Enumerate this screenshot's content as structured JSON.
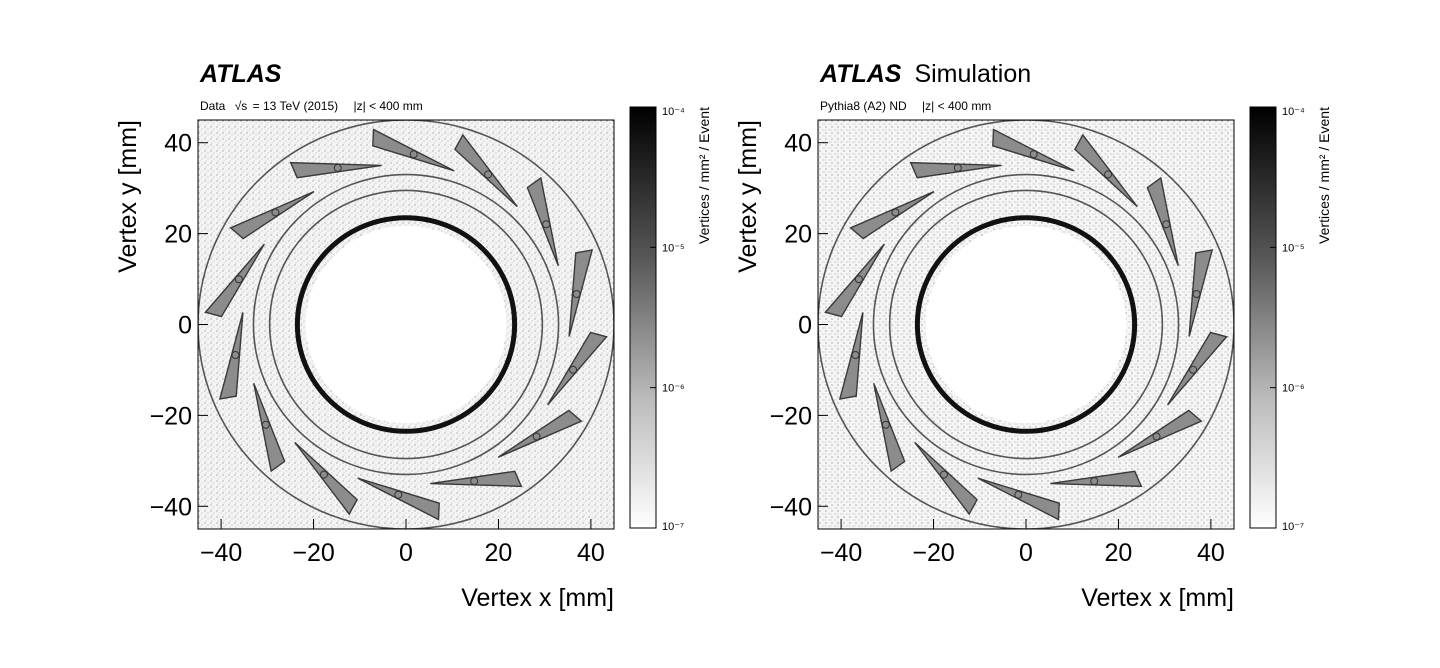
{
  "panels": [
    {
      "experiment": "ATLAS",
      "experiment_suffix": "",
      "info_label": "Data",
      "sqrt_symbol": "√s",
      "energy_text": "= 13 TeV (2015)",
      "z_cut": "|z| < 400 mm"
    },
    {
      "experiment": "ATLAS",
      "experiment_suffix": "Simulation",
      "info_label": "Pythia8 (A2) ND",
      "sqrt_symbol": "",
      "energy_text": "",
      "z_cut": "|z| < 400 mm"
    }
  ],
  "chart_data": [
    {
      "type": "heatmap",
      "xlabel": "Vertex x [mm]",
      "ylabel": "Vertex y [mm]",
      "xlim": [
        -45,
        45
      ],
      "ylim": [
        -45,
        45
      ],
      "x_ticks": [
        "−40",
        "−20",
        "0",
        "20",
        "40"
      ],
      "x_tick_values": [
        -40,
        -20,
        0,
        20,
        40
      ],
      "y_ticks": [
        "40",
        "20",
        "0",
        "−20",
        "−40"
      ],
      "y_tick_values": [
        40,
        20,
        0,
        -20,
        -40
      ],
      "z_label": "Vertices / mm² / Event",
      "z_scale": "log",
      "z_range": [
        1e-07,
        0.0001
      ],
      "z_ticks": [
        "10⁻⁴",
        "10⁻⁵",
        "10⁻⁶",
        "10⁻⁷"
      ],
      "z_tick_values": [
        0.0001,
        1e-05,
        1e-06,
        1e-07
      ],
      "rings_radius_mm": [
        23.5,
        29.5,
        33.0,
        45.0
      ],
      "pixel_staves": 14,
      "colormap": "grayscale"
    },
    {
      "type": "heatmap",
      "xlabel": "Vertex x [mm]",
      "ylabel": "Vertex y [mm]",
      "xlim": [
        -45,
        45
      ],
      "ylim": [
        -45,
        45
      ],
      "x_ticks": [
        "−40",
        "−20",
        "0",
        "20",
        "40"
      ],
      "x_tick_values": [
        -40,
        -20,
        0,
        20,
        40
      ],
      "y_ticks": [
        "40",
        "20",
        "0",
        "−20",
        "−40"
      ],
      "y_tick_values": [
        40,
        20,
        0,
        -20,
        -40
      ],
      "z_label": "Vertices / mm² / Event",
      "z_scale": "log",
      "z_range": [
        1e-07,
        0.0001
      ],
      "z_ticks": [
        "10⁻⁴",
        "10⁻⁵",
        "10⁻⁶",
        "10⁻⁷"
      ],
      "z_tick_values": [
        0.0001,
        1e-05,
        1e-06,
        1e-07
      ],
      "rings_radius_mm": [
        23.5,
        29.5,
        33.0,
        45.0
      ],
      "pixel_staves": 14,
      "colormap": "grayscale"
    }
  ]
}
